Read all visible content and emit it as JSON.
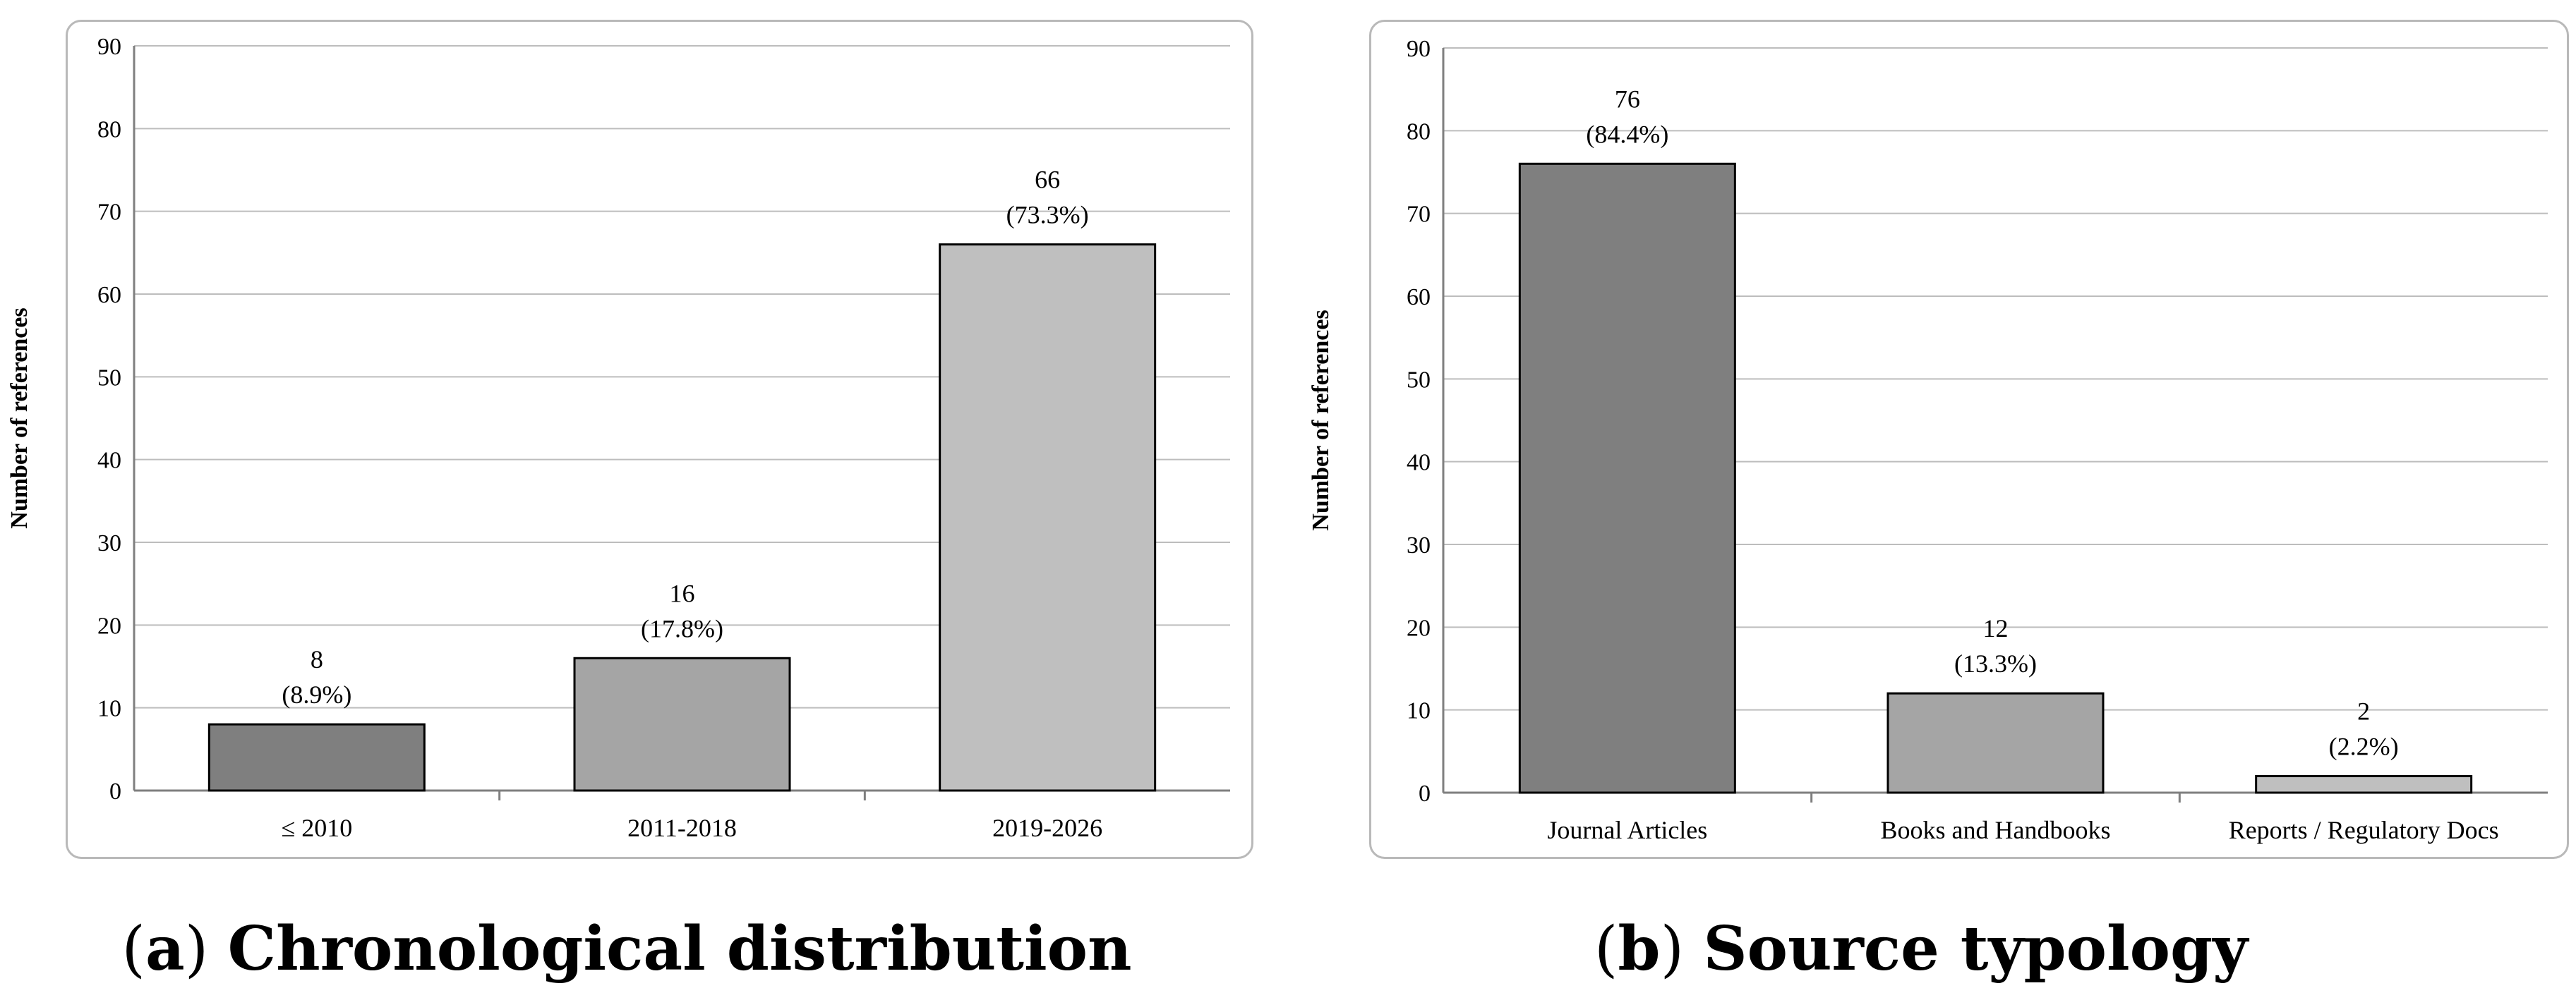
{
  "chart_data": [
    {
      "type": "bar",
      "caption_letter": "a",
      "caption_text": "Chronological distribution",
      "categories": [
        "≤ 2010",
        "2011-2018",
        "2019-2026"
      ],
      "values": [
        8,
        16,
        66
      ],
      "data_labels": [
        "8",
        "16",
        "66"
      ],
      "percent_labels": [
        "(8.9%)",
        "(17.8%)",
        "(73.3%)"
      ],
      "bar_colors": [
        "#7f7f7f",
        "#a5a5a5",
        "#bfbfbf"
      ],
      "ylabel": "Number of references",
      "xlabel": "",
      "ylim": [
        0,
        90
      ],
      "yticks": [
        0,
        10,
        20,
        30,
        40,
        50,
        60,
        70,
        80,
        90
      ],
      "grid": true,
      "legend": "none"
    },
    {
      "type": "bar",
      "caption_letter": "b",
      "caption_text": "Source typology",
      "categories": [
        "Journal Articles",
        "Books and Handbooks",
        "Reports / Regulatory Docs"
      ],
      "values": [
        76,
        12,
        2
      ],
      "data_labels": [
        "76",
        "12",
        "2"
      ],
      "percent_labels": [
        "(84.4%)",
        "(13.3%)",
        "(2.2%)"
      ],
      "bar_colors": [
        "#7f7f7f",
        "#a5a5a5",
        "#bfbfbf"
      ],
      "ylabel": "Number of references",
      "xlabel": "",
      "ylim": [
        0,
        90
      ],
      "yticks": [
        0,
        10,
        20,
        30,
        40,
        50,
        60,
        70,
        80,
        90
      ],
      "grid": true,
      "legend": "none"
    }
  ]
}
